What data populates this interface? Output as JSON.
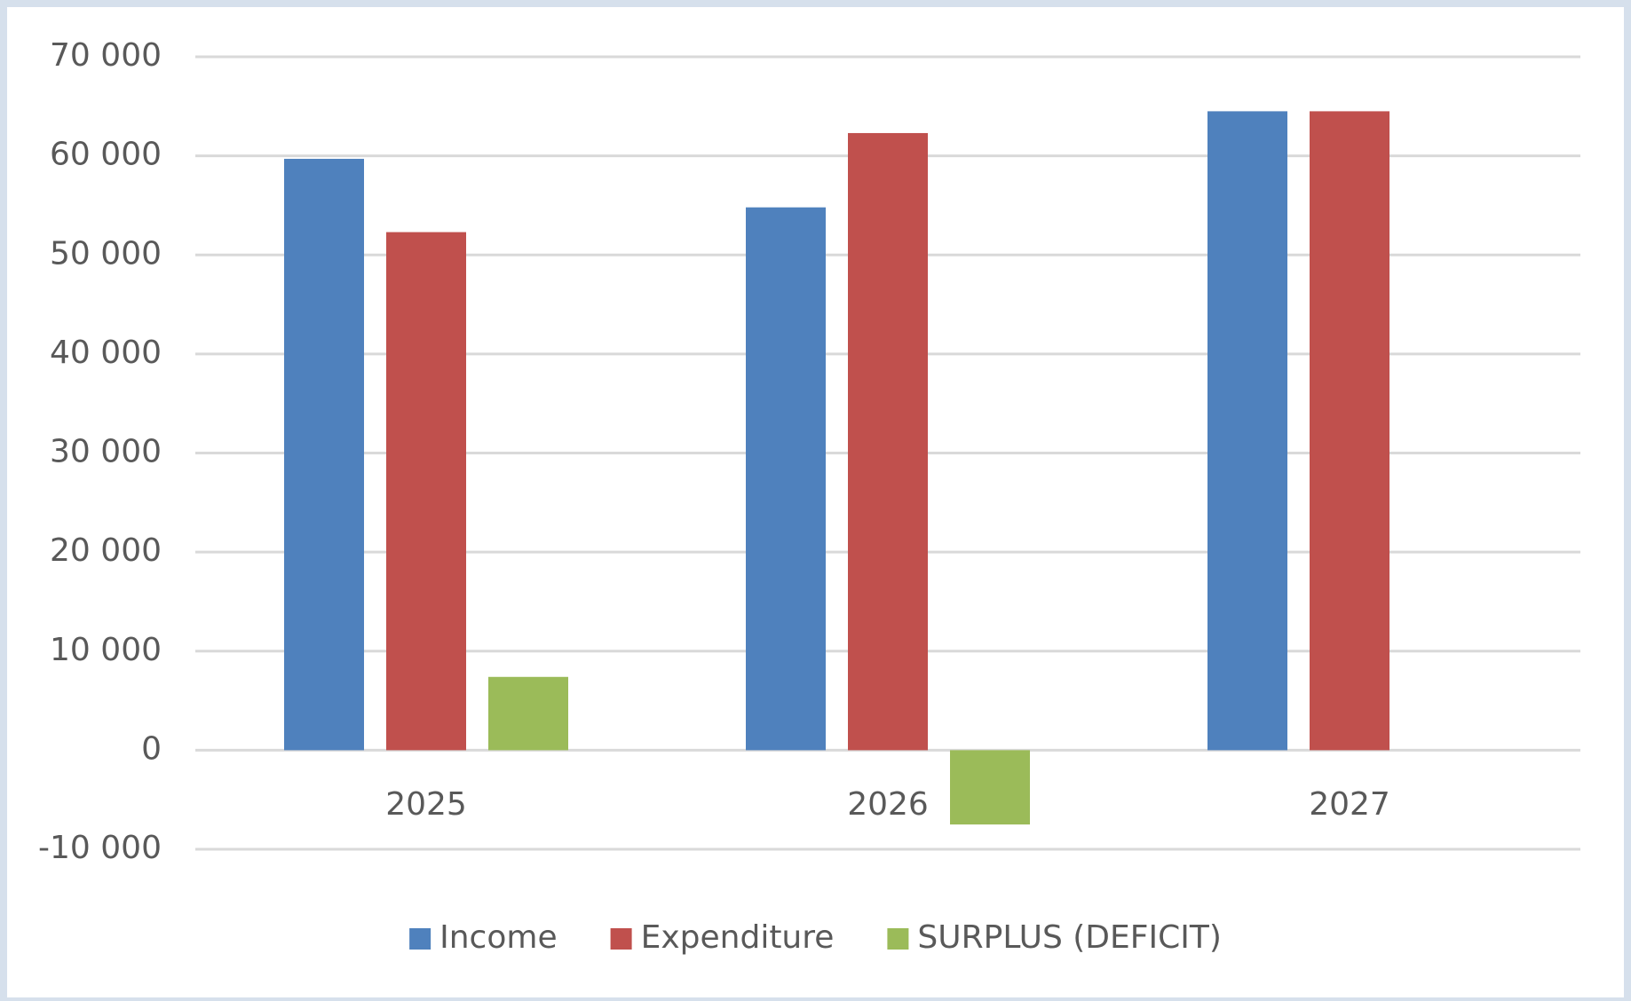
{
  "chart_data": {
    "type": "bar",
    "categories": [
      "2025",
      "2026",
      "2027"
    ],
    "series": [
      {
        "name": "Income",
        "color": "#4f81bd",
        "values": [
          59700,
          54800,
          64500
        ]
      },
      {
        "name": "Expenditure",
        "color": "#c0504d",
        "values": [
          52300,
          62300,
          64500
        ]
      },
      {
        "name": "SURPLUS (DEFICIT)",
        "color": "#9bbb59",
        "values": [
          7400,
          -7500,
          0
        ]
      }
    ],
    "ylim": [
      -10000,
      70000
    ],
    "yticks": [
      {
        "value": -10000,
        "label": "-10 000"
      },
      0,
      {
        "value": 10000,
        "label": "10 000"
      },
      {
        "value": 20000,
        "label": "20 000"
      },
      {
        "value": 30000,
        "label": "30 000"
      },
      {
        "value": 40000,
        "label": "40 000"
      },
      {
        "value": 50000,
        "label": "50 000"
      },
      {
        "value": 60000,
        "label": "60 000"
      },
      {
        "value": 70000,
        "label": "70 000"
      }
    ],
    "grid": true,
    "legend": "bottom"
  }
}
